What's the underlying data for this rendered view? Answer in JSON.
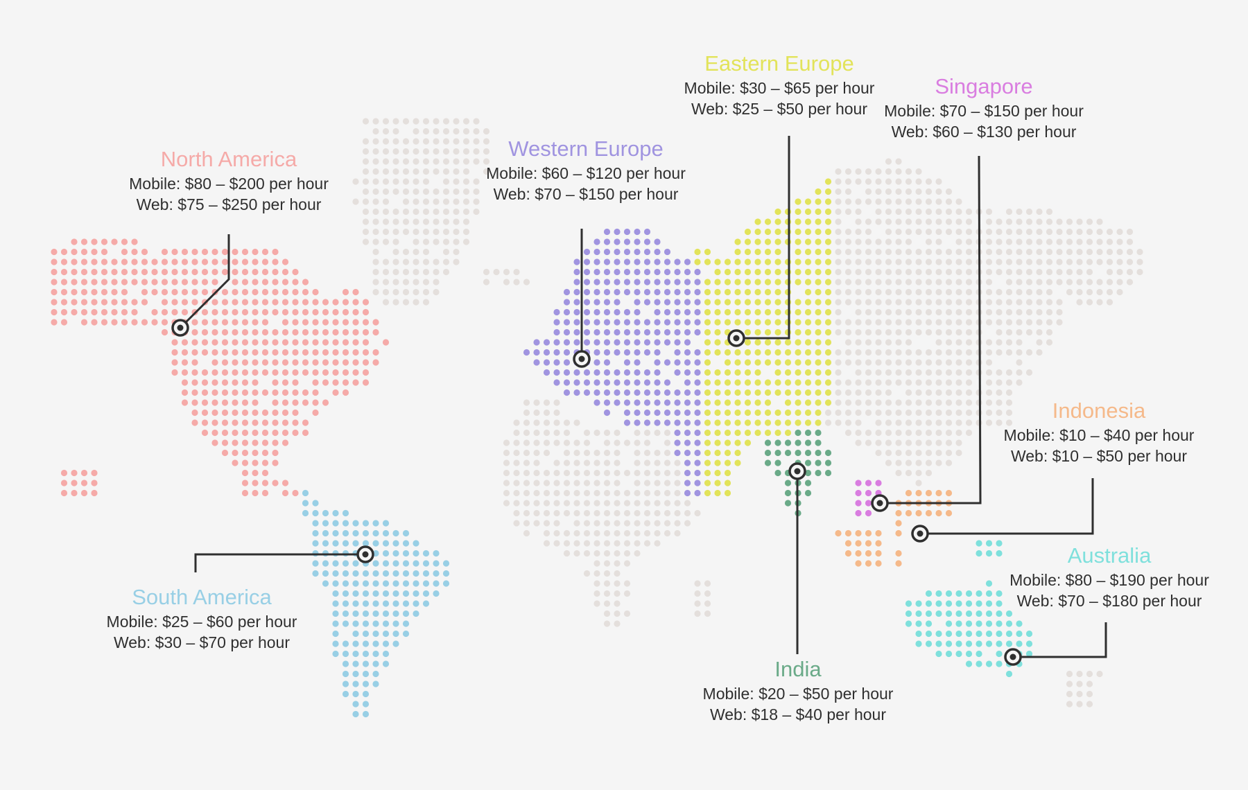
{
  "map": {
    "background": "#f5f5f5",
    "land_color": "#e4dfdc",
    "marker_color": "#2f2f2f"
  },
  "regions": [
    {
      "id": "north-america",
      "name": "North America",
      "color": "#f5aaa8",
      "mobile": "Mobile: $80 – $200 per hour",
      "web": "Web: $75 – $250 per hour"
    },
    {
      "id": "south-america",
      "name": "South America",
      "color": "#98cfe5",
      "mobile": "Mobile: $25 – $60 per hour",
      "web": "Web: $30 – $70 per hour"
    },
    {
      "id": "western-europe",
      "name": "Western Europe",
      "color": "#a094e0",
      "mobile": "Mobile: $60 – $120 per hour",
      "web": "Web: $70 – $150 per hour"
    },
    {
      "id": "eastern-europe",
      "name": "Eastern Europe",
      "color": "#e2e35a",
      "mobile": "Mobile: $30 – $65 per hour",
      "web": "Web: $25 – $50 per hour"
    },
    {
      "id": "singapore",
      "name": "Singapore",
      "color": "#d97de0",
      "mobile": "Mobile: $70 – $150 per hour",
      "web": "Web: $60 – $130 per hour"
    },
    {
      "id": "indonesia",
      "name": "Indonesia",
      "color": "#f5b98a",
      "mobile": "Mobile: $10 – $40 per hour",
      "web": "Web: $10 – $50 per hour"
    },
    {
      "id": "australia",
      "name": "Australia",
      "color": "#7fe0dc",
      "mobile": "Mobile: $80 – $190 per hour",
      "web": "Web: $70 – $180 per hour"
    },
    {
      "id": "india",
      "name": "India",
      "color": "#6aaa88",
      "mobile": "Mobile: $20 – $50 per hour",
      "web": "Web: $18 – $40 per hour"
    }
  ]
}
